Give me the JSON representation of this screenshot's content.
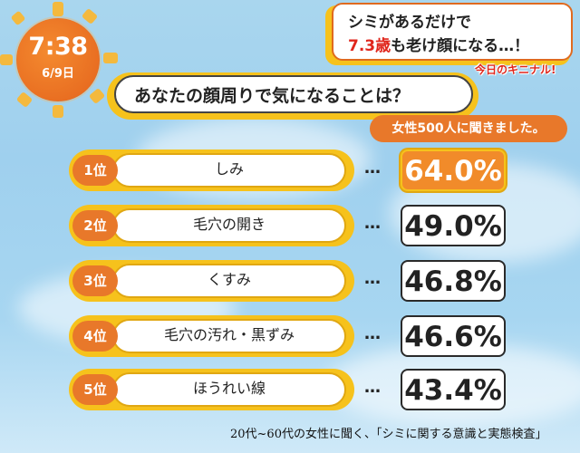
{
  "clock": {
    "time": "7:38",
    "date": "6/9日"
  },
  "headline": {
    "line1": "シミがあるだけで",
    "line2_highlight": "7.3歳",
    "line2_rest": "も老け顔になる…！"
  },
  "corner_tag": "今日のキニナル!",
  "question": "あなたの顔周りで気になることは？",
  "survey_note": "女性500人に聞きました。",
  "ranking": [
    {
      "rank": "1位",
      "label": "しみ",
      "percent": "64.0%",
      "value": 64.0
    },
    {
      "rank": "2位",
      "label": "毛穴の開き",
      "percent": "49.0%",
      "value": 49.0
    },
    {
      "rank": "3位",
      "label": "くすみ",
      "percent": "46.8%",
      "value": 46.8
    },
    {
      "rank": "4位",
      "label": "毛穴の汚れ・黒ずみ",
      "percent": "46.6%",
      "value": 46.6
    },
    {
      "rank": "5位",
      "label": "ほうれい線",
      "percent": "43.4%",
      "value": 43.4
    }
  ],
  "dots": "…",
  "source": "20代~60代の女性に聞く、「シミに関する意識と実態検査」",
  "colors": {
    "accent_orange": "#e8782a",
    "accent_yellow": "#f6c21c",
    "highlight_red": "#e0261c"
  }
}
